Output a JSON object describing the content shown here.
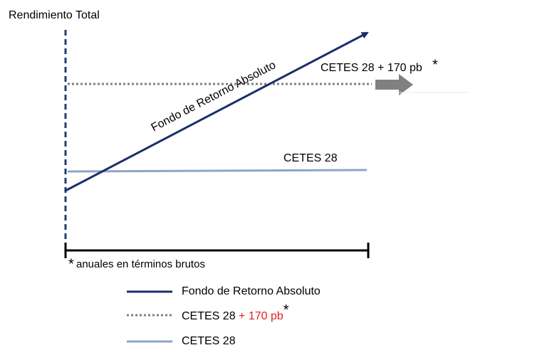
{
  "axis_label": "Rendimiento Total",
  "lines": [
    {
      "label": "Fondo de Retorno Absoluto"
    },
    {
      "label": "CETES 28 + 170 pb",
      "marker": "*"
    },
    {
      "label": "CETES 28"
    }
  ],
  "footnote": {
    "marker": "*",
    "text": "anuales en términos brutos"
  },
  "legend": [
    {
      "label": "Fondo de Retorno Absoluto"
    },
    {
      "label": "CETES 28",
      "suffix": "+ 170 pb",
      "marker": "*"
    },
    {
      "label": "CETES 28"
    }
  ]
}
